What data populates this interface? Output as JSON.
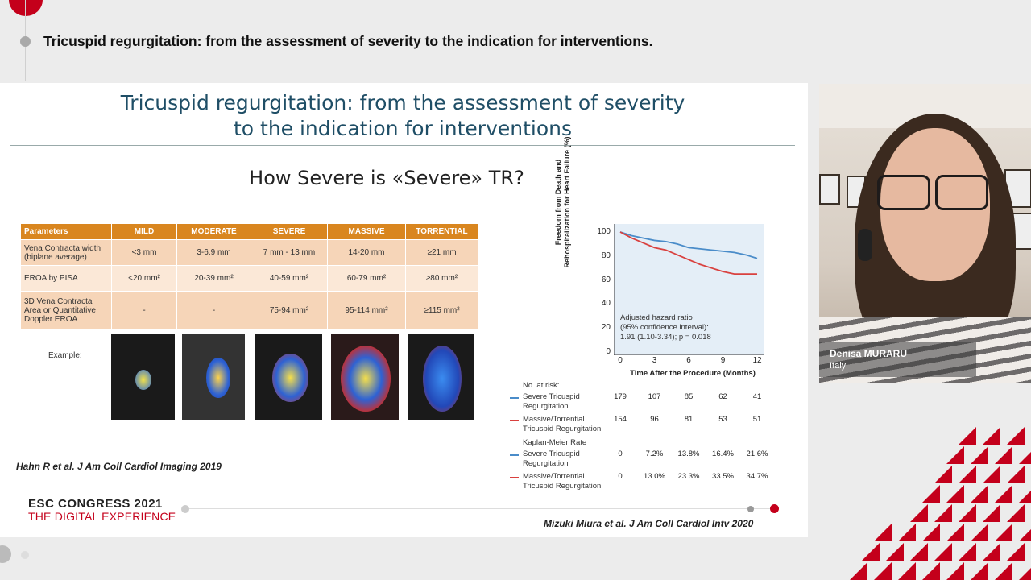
{
  "session": {
    "title": "Tricuspid regurgitation: from the assessment of severity to the indication for interventions."
  },
  "slide": {
    "title_line1": "Tricuspid regurgitation: from the assessment of severity",
    "title_line2": "to the indication for interventions",
    "subtitle": "How Severe is «Severe» TR?",
    "table": {
      "headers": [
        "Parameters",
        "MILD",
        "MODERATE",
        "SEVERE",
        "MASSIVE",
        "TORRENTIAL"
      ],
      "rows": [
        {
          "param": "Vena Contracta width (biplane average)",
          "values": [
            "<3 mm",
            "3-6.9 mm",
            "7 mm - 13 mm",
            "14-20 mm",
            "≥21 mm"
          ]
        },
        {
          "param": "EROA by PISA",
          "values": [
            "<20 mm²",
            "20-39 mm²",
            "40-59 mm²",
            "60-79 mm²",
            "≥80 mm²"
          ]
        },
        {
          "param": "3D Vena Contracta Area or Quantitative Doppler EROA",
          "values": [
            "-",
            "-",
            "75-94 mm²",
            "95-114 mm²",
            "≥115 mm²"
          ]
        }
      ]
    },
    "example_label": "Example:",
    "citation_left": "Hahn R et al. J Am Coll Cardiol Imaging 2019",
    "citation_right": "Mizuki Miura et al. J Am Coll Cardiol Intv 2020",
    "logo_line1": "ESC CONGRESS 2021",
    "logo_line2": "THE DIGITAL EXPERIENCE"
  },
  "chart_data": {
    "type": "line",
    "title": "",
    "ylabel": "Freedom from Death and Rehospitalization for Heart Failure (%)",
    "xlabel": "Time After the Procedure (Months)",
    "x_ticks": [
      "0",
      "3",
      "6",
      "9",
      "12"
    ],
    "y_ticks": [
      "100",
      "80",
      "60",
      "40",
      "20",
      "0"
    ],
    "xlim": [
      0,
      12
    ],
    "ylim": [
      0,
      100
    ],
    "series": [
      {
        "name": "Severe Tricuspid Regurgitation",
        "color": "#4a8cc9",
        "x": [
          0,
          1,
          2,
          3,
          4,
          5,
          6,
          7,
          8,
          9,
          10,
          11,
          12
        ],
        "y": [
          100,
          97,
          95,
          93,
          92,
          90,
          87,
          86,
          85,
          84,
          83,
          81,
          78
        ]
      },
      {
        "name": "Massive/Torrential Tricuspid Regurgitation",
        "color": "#d9413f",
        "x": [
          0,
          1,
          2,
          3,
          4,
          5,
          6,
          7,
          8,
          9,
          10,
          11,
          12
        ],
        "y": [
          100,
          95,
          91,
          87,
          85,
          81,
          77,
          73,
          70,
          67,
          65,
          65,
          65
        ]
      }
    ],
    "annotation": {
      "line1": "Adjusted hazard ratio",
      "line2": "(95% confidence interval):",
      "line3": "1.91 (1.10-3.34); p = 0.018"
    },
    "risk_table": {
      "header": "No. at risk:",
      "km_header": "Kaplan-Meier Rate",
      "rows": [
        {
          "label1": "Severe Tricuspid",
          "label2": "Regurgitation",
          "color": "#4a8cc9",
          "values": [
            "179",
            "107",
            "85",
            "62",
            "41"
          ]
        },
        {
          "label1": "Massive/Torrential",
          "label2": "Tricuspid Regurgitation",
          "color": "#d9413f",
          "values": [
            "154",
            "96",
            "81",
            "53",
            "51"
          ]
        },
        {
          "label1": "Severe Tricuspid",
          "label2": "Regurgitation",
          "color": "#4a8cc9",
          "values": [
            "0",
            "7.2%",
            "13.8%",
            "16.4%",
            "21.6%"
          ]
        },
        {
          "label1": "Massive/Torrential",
          "label2": "Tricuspid Regurgitation",
          "color": "#d9413f",
          "values": [
            "0",
            "13.0%",
            "23.3%",
            "33.5%",
            "34.7%"
          ]
        }
      ]
    }
  },
  "speaker": {
    "name": "Denisa MURARU",
    "country": "Italy"
  },
  "colors": {
    "brand_red": "#c4001b",
    "table_header": "#d9861f"
  }
}
